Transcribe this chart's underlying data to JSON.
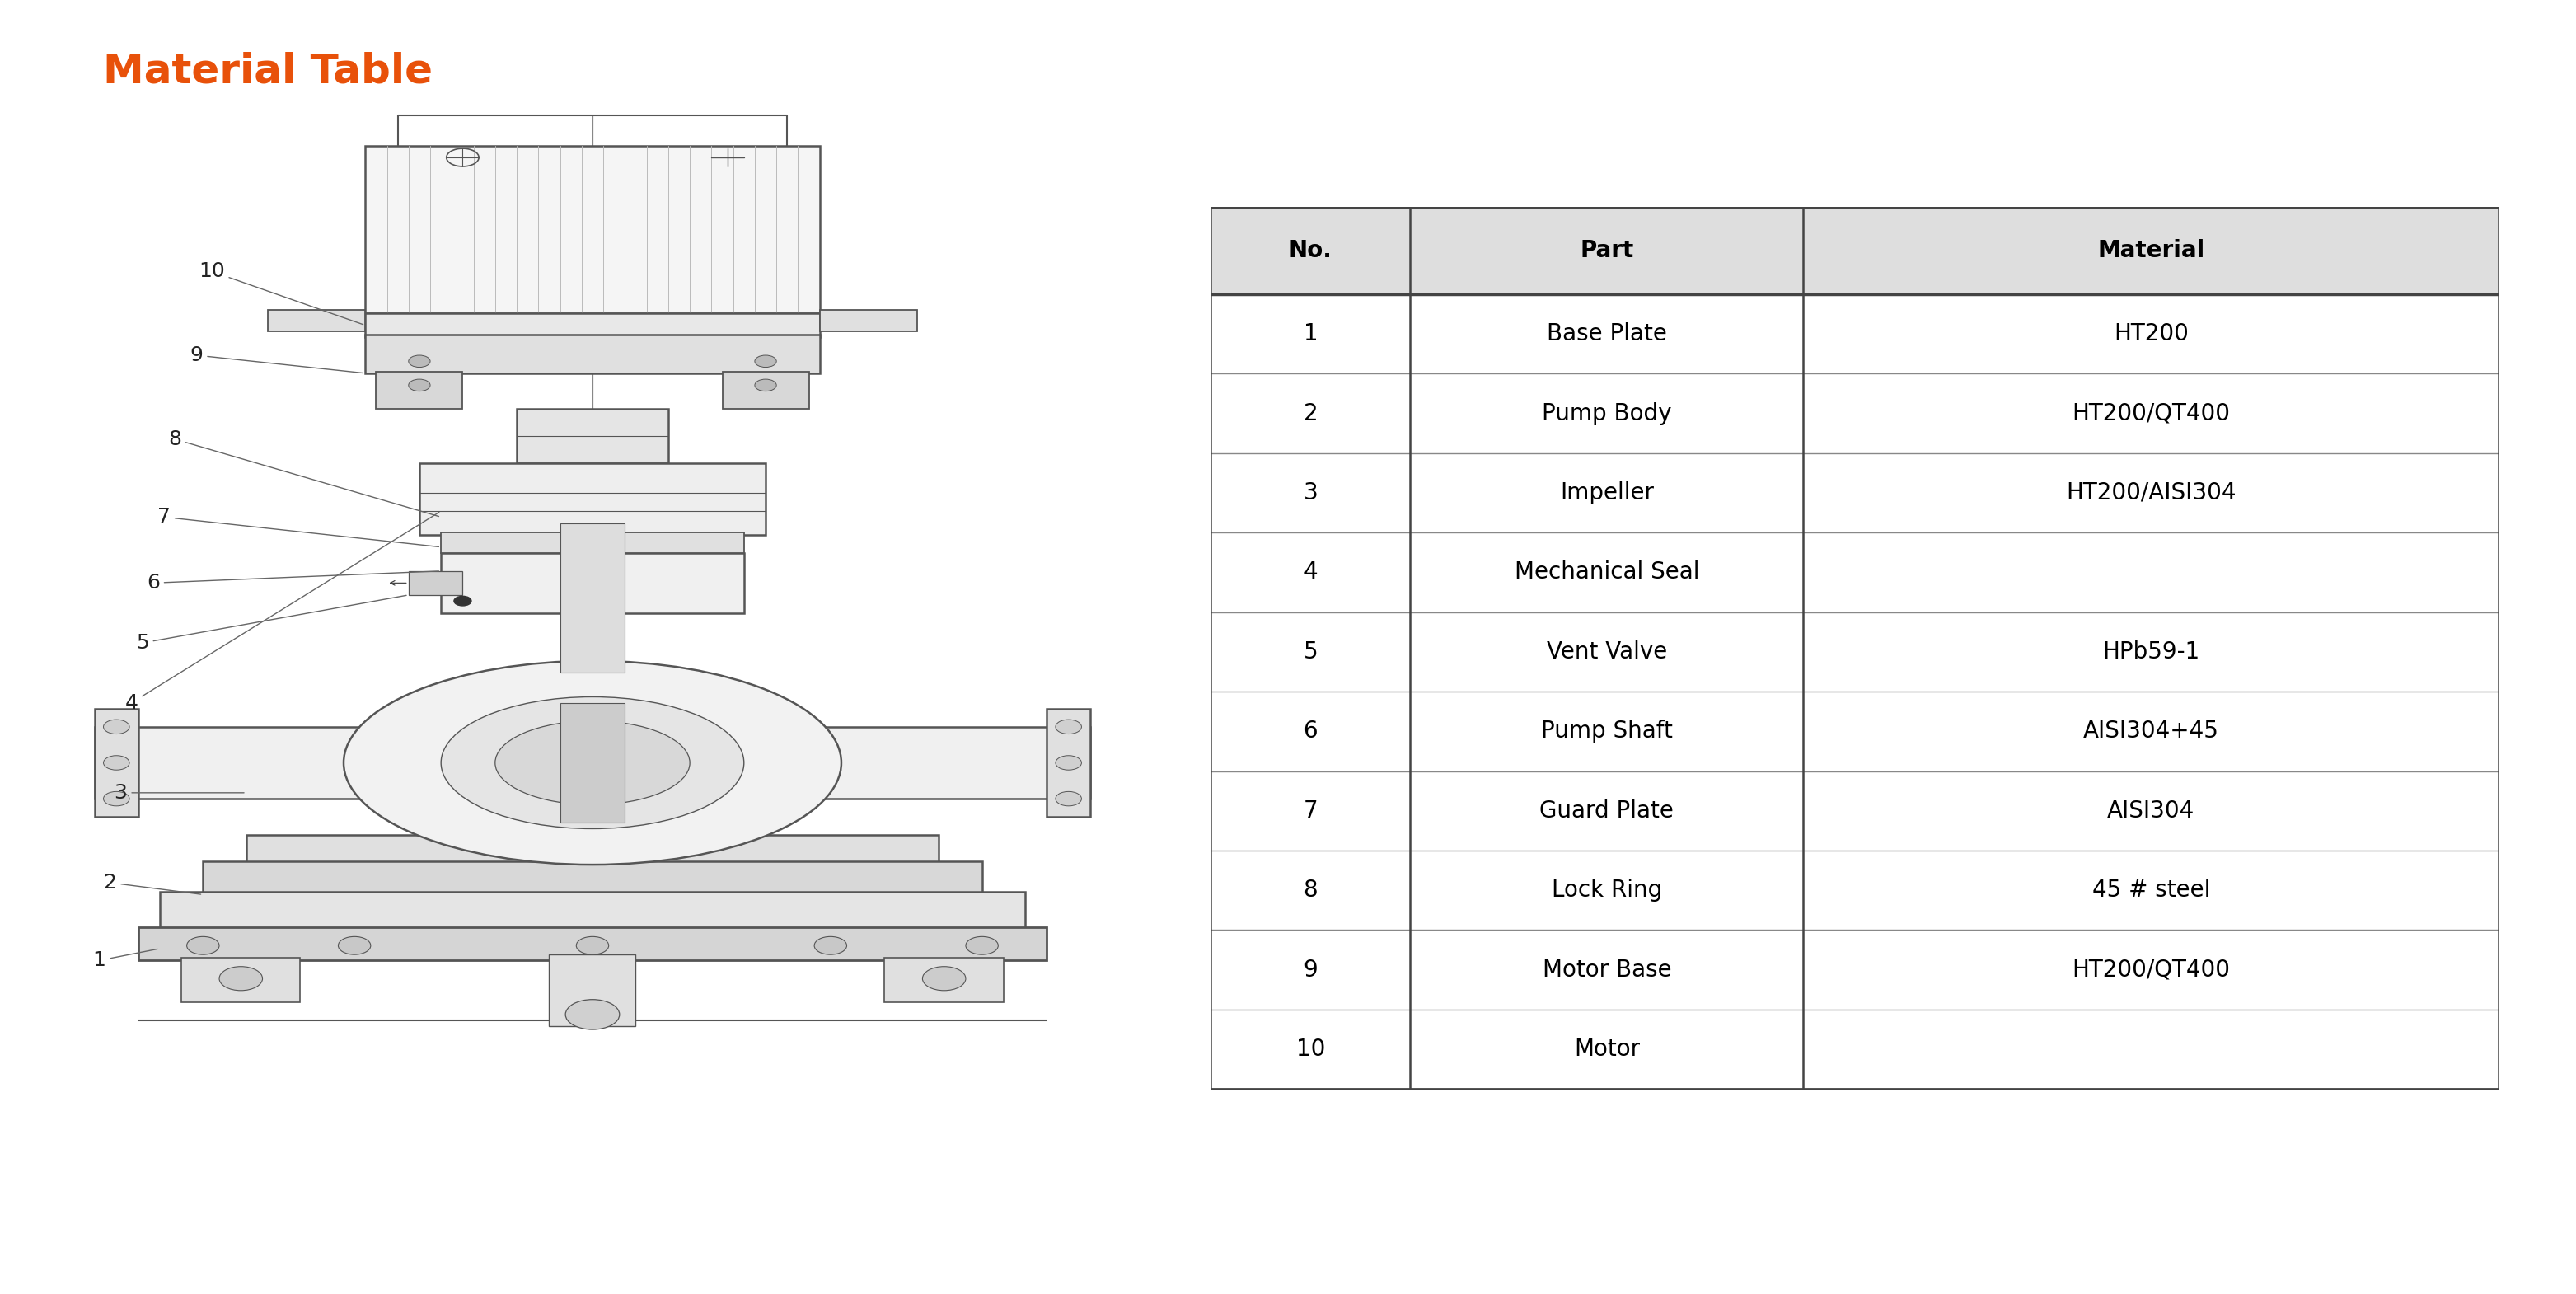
{
  "title": "Material Table",
  "title_color": "#E8510A",
  "title_fontsize": 36,
  "background_color": "#ffffff",
  "table_header": [
    "No.",
    "Part",
    "Material"
  ],
  "table_rows": [
    [
      "1",
      "Base Plate",
      "HT200"
    ],
    [
      "2",
      "Pump Body",
      "HT200/QT400"
    ],
    [
      "3",
      "Impeller",
      "HT200/AISI304"
    ],
    [
      "4",
      "Mechanical Seal",
      ""
    ],
    [
      "5",
      "Vent Valve",
      "HPb59-1"
    ],
    [
      "6",
      "Pump Shaft",
      "AISI304+45"
    ],
    [
      "7",
      "Guard Plate",
      "AISI304"
    ],
    [
      "8",
      "Lock Ring",
      "45 # steel"
    ],
    [
      "9",
      "Motor Base",
      "HT200/QT400"
    ],
    [
      "10",
      "Motor",
      ""
    ]
  ],
  "header_bg_color": "#DEDEDE",
  "table_text_color": "#000000",
  "header_text_color": "#000000",
  "table_fontsize": 20,
  "header_fontsize": 20,
  "line_color": "#888888",
  "diagram_label_color": "#222222",
  "diagram_label_fontsize": 18,
  "lc": "#555555"
}
